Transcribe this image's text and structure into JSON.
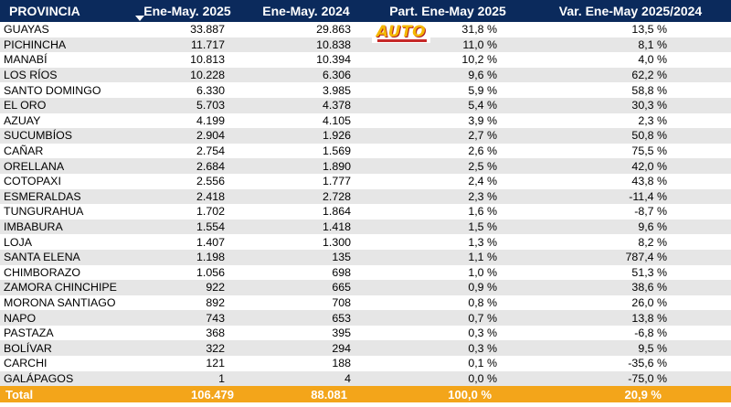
{
  "headers": [
    "PROVINCIA",
    "Ene-May. 2025",
    "Ene-May. 2024",
    "Part. Ene-May 2025",
    "Var. Ene-May 2025/2024"
  ],
  "rows": [
    [
      "GUAYAS",
      "33.887",
      "29.863",
      "31,8 %",
      "13,5 %"
    ],
    [
      "PICHINCHA",
      "11.717",
      "10.838",
      "11,0 %",
      "8,1 %"
    ],
    [
      "MANABÍ",
      "10.813",
      "10.394",
      "10,2 %",
      "4,0 %"
    ],
    [
      "LOS RÍOS",
      "10.228",
      "6.306",
      "9,6 %",
      "62,2 %"
    ],
    [
      "SANTO DOMINGO",
      "6.330",
      "3.985",
      "5,9 %",
      "58,8 %"
    ],
    [
      "EL ORO",
      "5.703",
      "4.378",
      "5,4 %",
      "30,3 %"
    ],
    [
      "AZUAY",
      "4.199",
      "4.105",
      "3,9 %",
      "2,3 %"
    ],
    [
      "SUCUMBÍOS",
      "2.904",
      "1.926",
      "2,7 %",
      "50,8 %"
    ],
    [
      "CAÑAR",
      "2.754",
      "1.569",
      "2,6 %",
      "75,5 %"
    ],
    [
      "ORELLANA",
      "2.684",
      "1.890",
      "2,5 %",
      "42,0 %"
    ],
    [
      "COTOPAXI",
      "2.556",
      "1.777",
      "2,4 %",
      "43,8 %"
    ],
    [
      "ESMERALDAS",
      "2.418",
      "2.728",
      "2,3 %",
      "-11,4 %"
    ],
    [
      "TUNGURAHUA",
      "1.702",
      "1.864",
      "1,6 %",
      "-8,7 %"
    ],
    [
      "IMBABURA",
      "1.554",
      "1.418",
      "1,5 %",
      "9,6 %"
    ],
    [
      "LOJA",
      "1.407",
      "1.300",
      "1,3 %",
      "8,2 %"
    ],
    [
      "SANTA ELENA",
      "1.198",
      "135",
      "1,1 %",
      "787,4 %"
    ],
    [
      "CHIMBORAZO",
      "1.056",
      "698",
      "1,0 %",
      "51,3 %"
    ],
    [
      "ZAMORA CHINCHIPE",
      "922",
      "665",
      "0,9 %",
      "38,6 %"
    ],
    [
      "MORONA SANTIAGO",
      "892",
      "708",
      "0,8 %",
      "26,0 %"
    ],
    [
      "NAPO",
      "743",
      "653",
      "0,7 %",
      "13,8 %"
    ],
    [
      "PASTAZA",
      "368",
      "395",
      "0,3 %",
      "-6,8 %"
    ],
    [
      "BOLÍVAR",
      "322",
      "294",
      "0,3 %",
      "9,5 %"
    ],
    [
      "CARCHI",
      "121",
      "188",
      "0,1 %",
      "-35,6 %"
    ],
    [
      "GALÁPAGOS",
      "1",
      "4",
      "0,0 %",
      "-75,0 %"
    ]
  ],
  "total": [
    "Total",
    "106.479",
    "88.081",
    "100,0 %",
    "20,9 %"
  ],
  "logo": {
    "text": "AUTO"
  },
  "sort_icon": "sort-descending-icon",
  "colors": {
    "header_bg": "#0b2a5c",
    "total_bg": "#f3a51a",
    "stripe": "#e6e6e6"
  }
}
